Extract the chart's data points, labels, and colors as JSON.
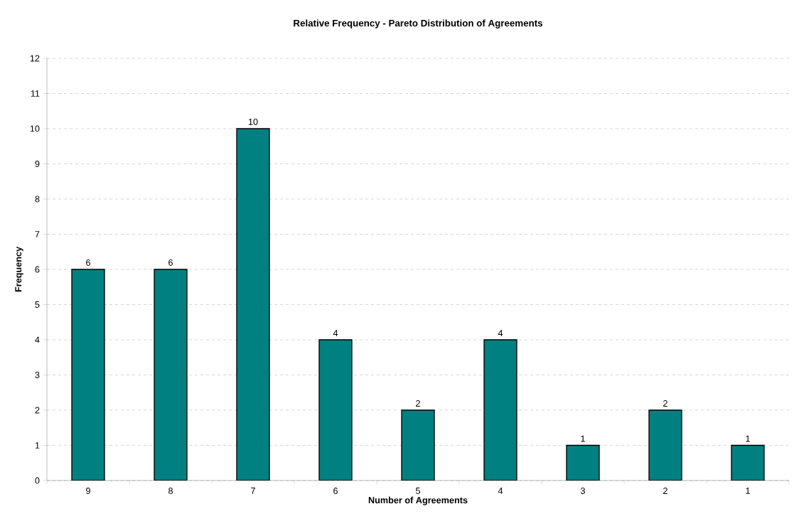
{
  "chart_data": {
    "type": "bar",
    "title": "Relative Frequency - Pareto Distribution of Agreements",
    "xlabel": "Number of Agreements",
    "ylabel": "Frequency",
    "categories": [
      "9",
      "8",
      "7",
      "6",
      "5",
      "4",
      "3",
      "2",
      "1"
    ],
    "values": [
      6,
      6,
      10,
      4,
      2,
      4,
      1,
      2,
      1
    ],
    "color": "#008080",
    "ylim": [
      0,
      12
    ],
    "yticks": [
      0,
      1,
      2,
      3,
      4,
      5,
      6,
      7,
      8,
      9,
      10,
      11,
      12
    ],
    "grid": "y",
    "data_labels": true
  }
}
